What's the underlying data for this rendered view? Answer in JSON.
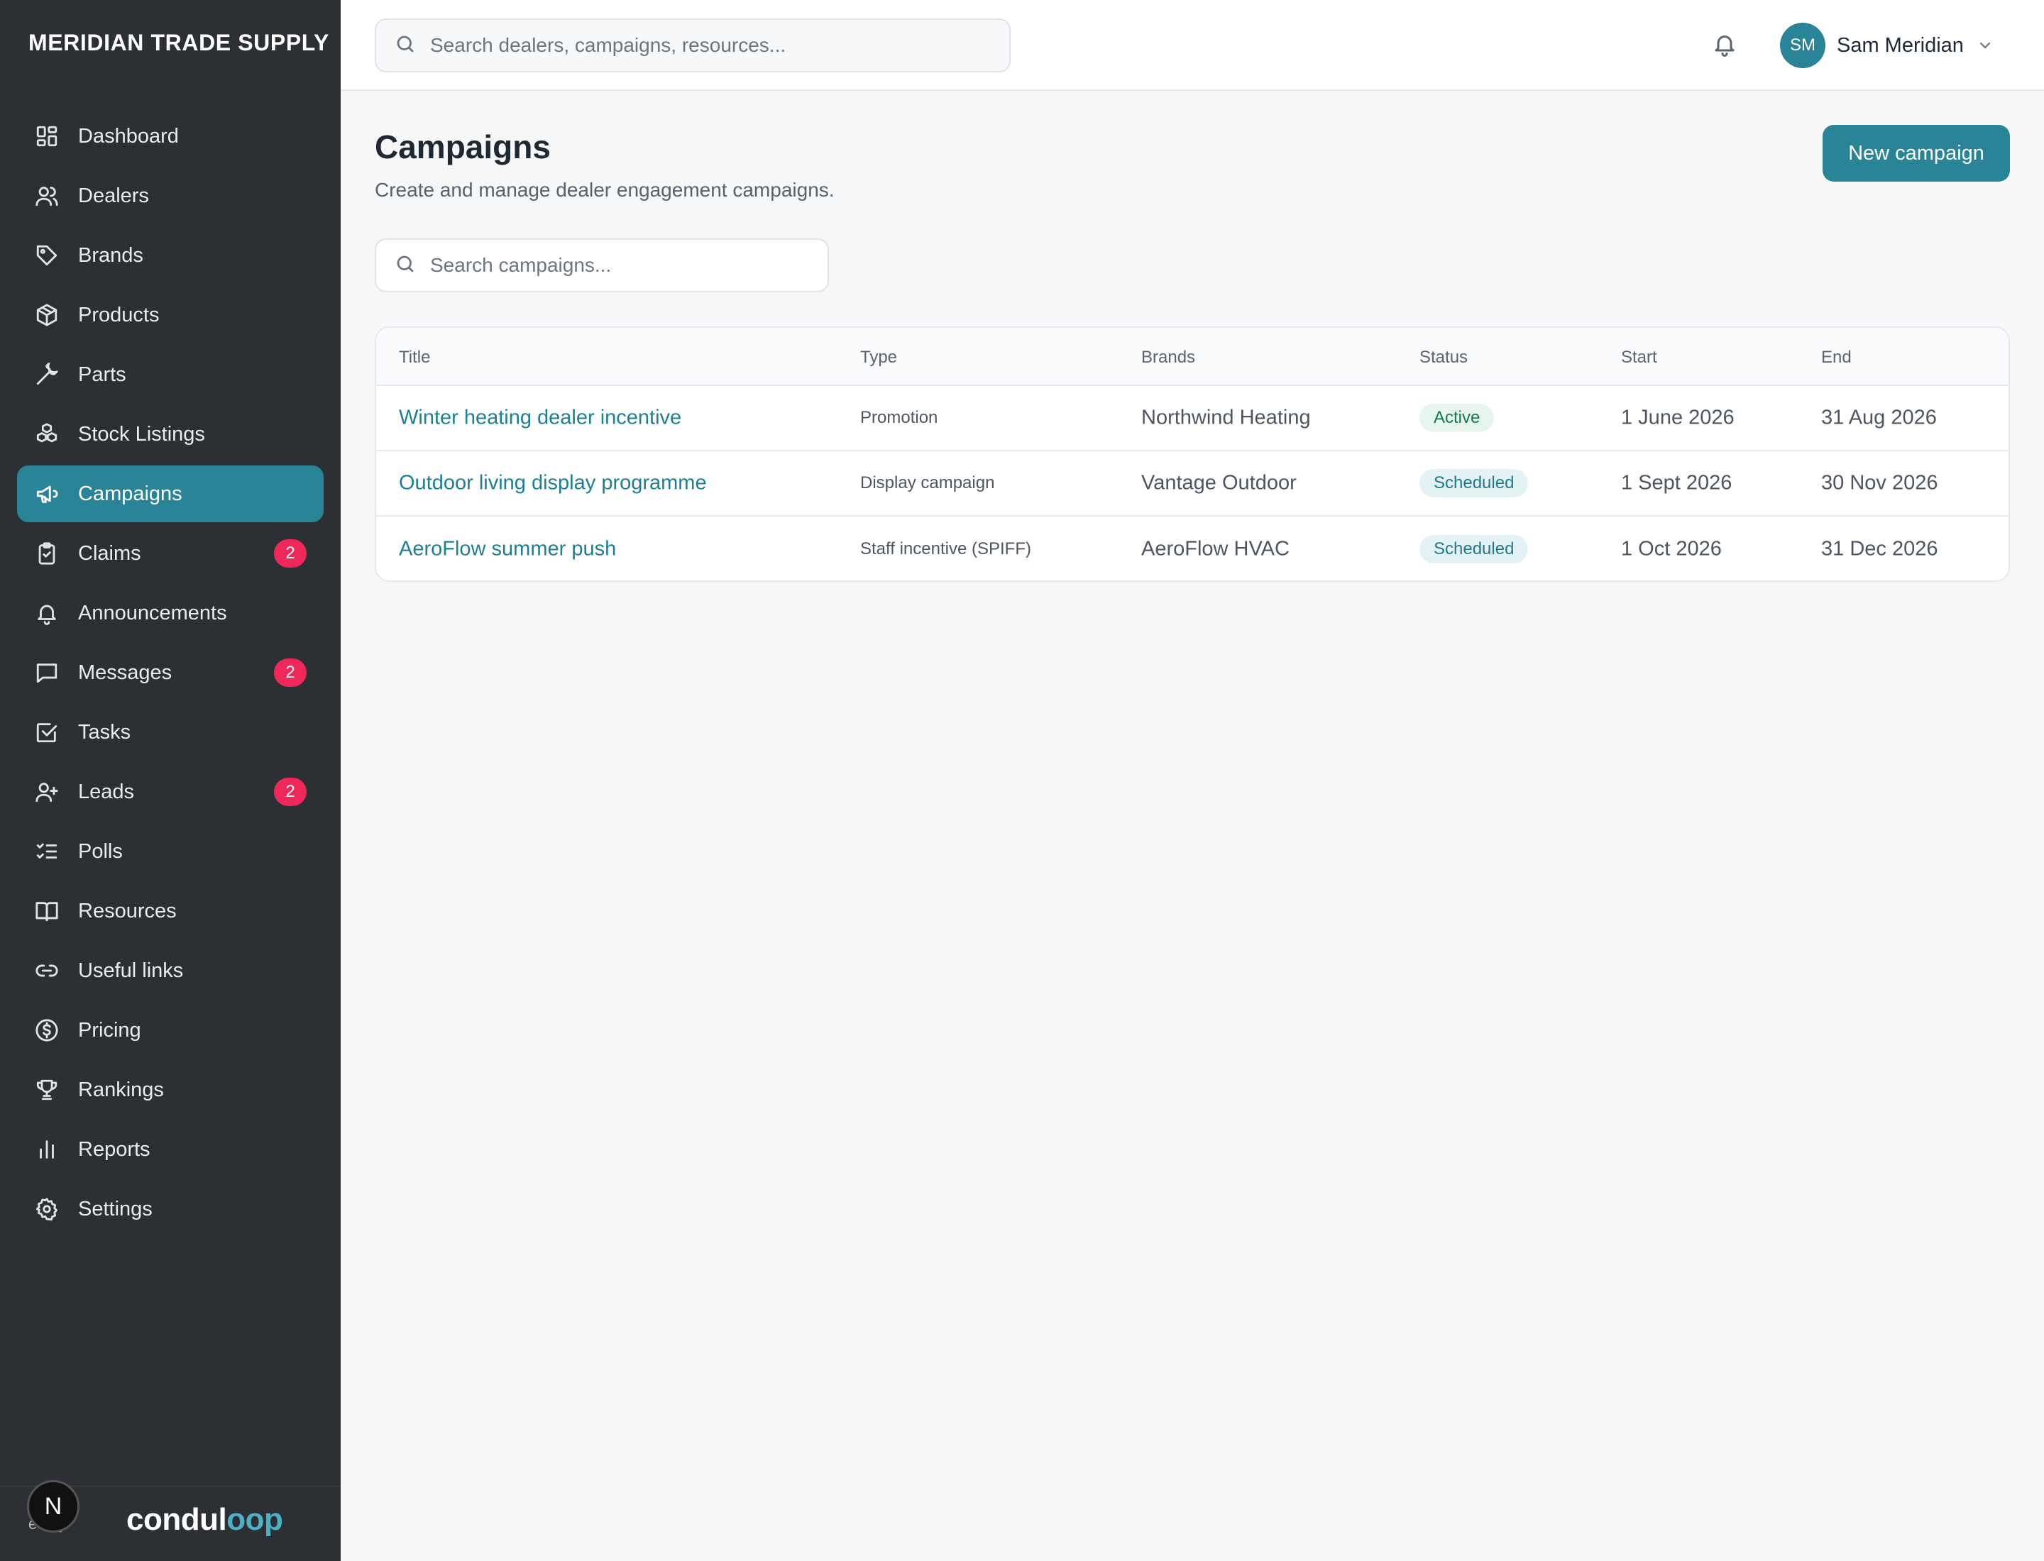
{
  "brand": "MERIDIAN TRADE SUPPLY",
  "nav": [
    {
      "label": "Dashboard",
      "icon": "dashboard-icon"
    },
    {
      "label": "Dealers",
      "icon": "users-icon"
    },
    {
      "label": "Brands",
      "icon": "tag-icon"
    },
    {
      "label": "Products",
      "icon": "box-icon"
    },
    {
      "label": "Parts",
      "icon": "wrench-icon"
    },
    {
      "label": "Stock Listings",
      "icon": "boxes-icon"
    },
    {
      "label": "Campaigns",
      "icon": "megaphone-icon",
      "active": true
    },
    {
      "label": "Claims",
      "icon": "clipboard-check-icon",
      "badge": "2"
    },
    {
      "label": "Announcements",
      "icon": "bell-icon"
    },
    {
      "label": "Messages",
      "icon": "message-icon",
      "badge": "2"
    },
    {
      "label": "Tasks",
      "icon": "checkbox-icon"
    },
    {
      "label": "Leads",
      "icon": "user-plus-icon",
      "badge": "2"
    },
    {
      "label": "Polls",
      "icon": "list-checks-icon"
    },
    {
      "label": "Resources",
      "icon": "book-icon"
    },
    {
      "label": "Useful links",
      "icon": "link-icon"
    },
    {
      "label": "Pricing",
      "icon": "dollar-circle-icon"
    },
    {
      "label": "Rankings",
      "icon": "trophy-icon"
    },
    {
      "label": "Reports",
      "icon": "bar-chart-icon"
    },
    {
      "label": "Settings",
      "icon": "gear-icon"
    }
  ],
  "footer": {
    "powered": "ed by",
    "logo_main": "condul",
    "logo_accent": "oop",
    "n_badge": "N"
  },
  "topbar": {
    "search_placeholder": "Search dealers, campaigns, resources...",
    "user_initials": "SM",
    "user_name": "Sam Meridian"
  },
  "page": {
    "title": "Campaigns",
    "subtitle": "Create and manage dealer engagement campaigns.",
    "new_button": "New campaign",
    "search_placeholder": "Search campaigns..."
  },
  "table": {
    "columns": [
      "Title",
      "Type",
      "Brands",
      "Status",
      "Start",
      "End"
    ],
    "rows": [
      {
        "title": "Winter heating dealer incentive",
        "type": "Promotion",
        "brands": "Northwind Heating",
        "status": "Active",
        "status_kind": "active",
        "start": "1 June 2026",
        "end": "31 Aug 2026"
      },
      {
        "title": "Outdoor living display programme",
        "type": "Display campaign",
        "brands": "Vantage Outdoor",
        "status": "Scheduled",
        "status_kind": "scheduled",
        "start": "1 Sept 2026",
        "end": "30 Nov 2026"
      },
      {
        "title": "AeroFlow summer push",
        "type": "Staff incentive (SPIFF)",
        "brands": "AeroFlow HVAC",
        "status": "Scheduled",
        "status_kind": "scheduled",
        "start": "1 Oct 2026",
        "end": "31 Dec 2026"
      }
    ]
  },
  "colors": {
    "sidebar_bg": "#2c3035",
    "accent": "#2a8497",
    "badge": "#f0285a",
    "link": "#1d7f94"
  }
}
